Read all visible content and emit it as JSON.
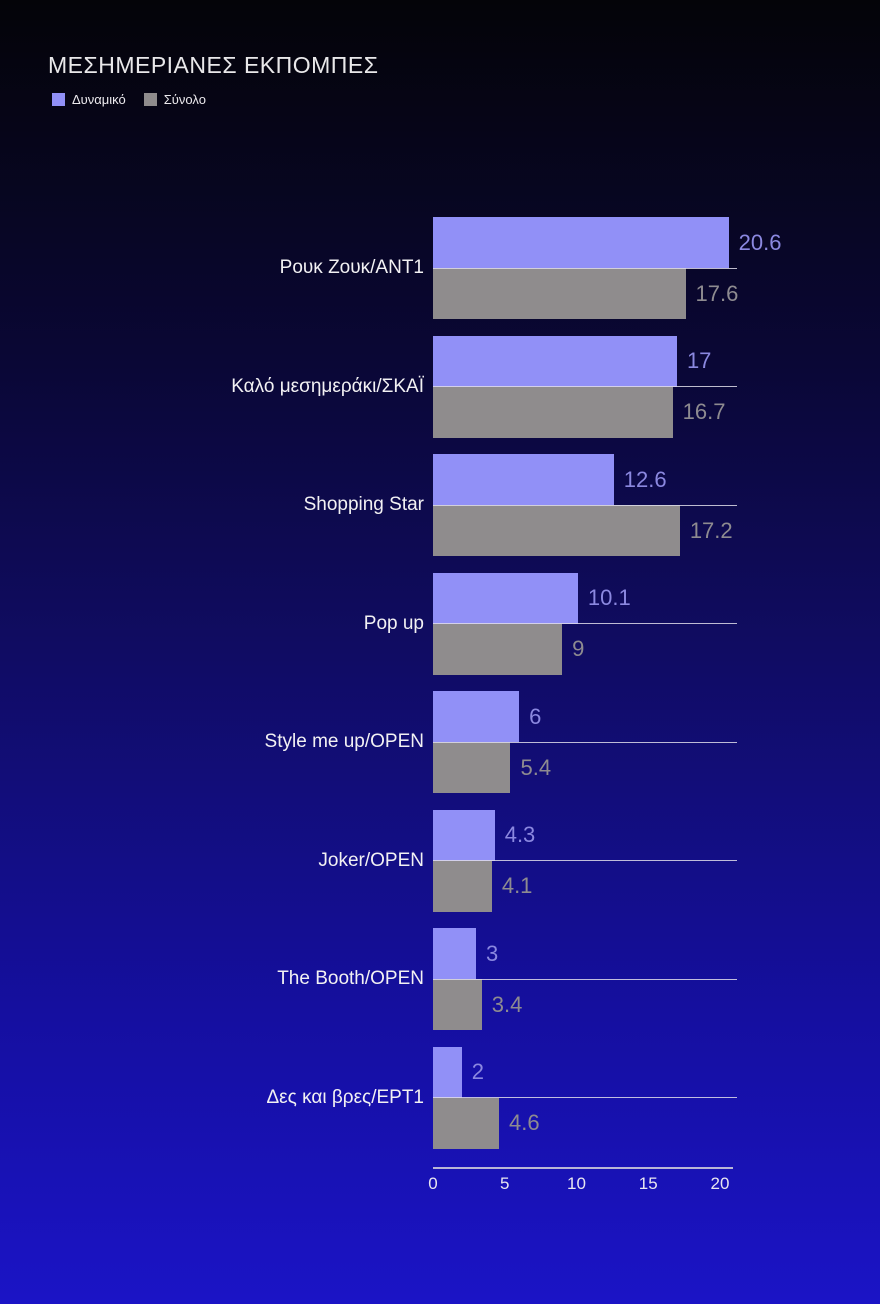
{
  "chart_data": {
    "type": "bar",
    "orientation": "horizontal",
    "title": "ΜΕΣΗΜΕΡΙΑΝΕΣ ΕΚΠΟΜΠΕΣ",
    "xlabel": "",
    "ylabel": "",
    "xlim": [
      0,
      20
    ],
    "x_ticks": [
      "0",
      "5",
      "10",
      "15",
      "20"
    ],
    "x_tick_values": [
      0,
      5,
      10,
      15,
      20
    ],
    "legend_position": "top-left",
    "grid": "off",
    "categories": [
      "Ρουκ Ζουκ/ΑΝΤ1",
      "Καλό μεσημεράκι/ΣΚΑΪ",
      "Shopping Star",
      "Pop up",
      "Style me up/OPEN",
      "Joker/OPEN",
      "The Booth/OPEN",
      "Δες και βρες/ΕΡΤ1"
    ],
    "series": [
      {
        "name": "Δυναμικό",
        "color": "#9190f7",
        "value_label_color": "#8b88e0",
        "values": [
          20.6,
          17,
          12.6,
          10.1,
          6,
          4.3,
          3,
          2
        ],
        "labels": [
          "20.6",
          "17",
          "12.6",
          "10.1",
          "6",
          "4.3",
          "3",
          "2"
        ]
      },
      {
        "name": "Σύνολο",
        "color": "#8f8c8d",
        "value_label_color": "#8e8b90",
        "values": [
          17.6,
          16.7,
          17.2,
          9,
          5.4,
          4.1,
          3.4,
          4.6
        ],
        "labels": [
          "17.6",
          "16.7",
          "17.2",
          "9",
          "5.4",
          "4.1",
          "3.4",
          "4.6"
        ]
      }
    ],
    "colors": {
      "background_top": "#040408",
      "background_bottom": "#1b14c6",
      "title_text": "#e9e8ea",
      "category_text": "#f2f1f3",
      "axis_line": "#b9b6d6",
      "axis_tick_text": "#e8e6f0",
      "row_baseline": "#dedce9"
    }
  }
}
